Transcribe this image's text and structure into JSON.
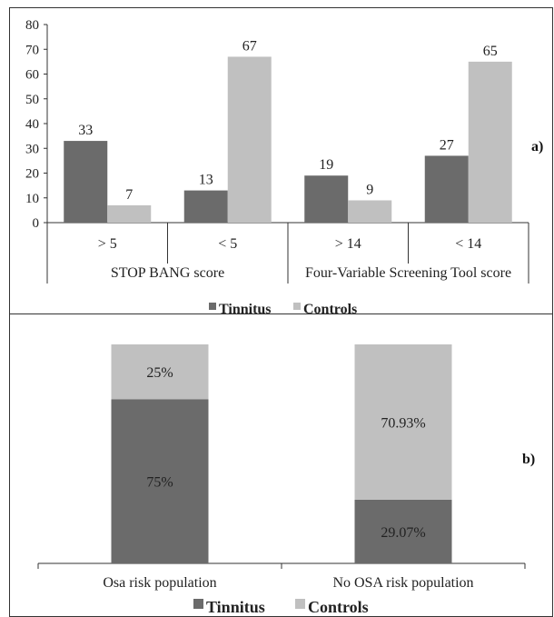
{
  "chart_data": [
    {
      "type": "bar",
      "panel_label": "a)",
      "group_labels": [
        "STOP BANG score",
        "Four-Variable Screening Tool score"
      ],
      "categories": [
        "> 5",
        "< 5",
        "> 14",
        "< 14"
      ],
      "series": [
        {
          "name": "Tinnitus",
          "color": "#6b6b6b",
          "values": [
            33,
            13,
            19,
            27
          ]
        },
        {
          "name": "Controls",
          "color": "#c0c0c0",
          "values": [
            7,
            67,
            9,
            65
          ]
        }
      ],
      "ylim": [
        0,
        80
      ],
      "yticks": [
        "0",
        "10",
        "20",
        "30",
        "40",
        "50",
        "60",
        "70",
        "80"
      ],
      "legend_position": "bottom-center",
      "grid": false
    },
    {
      "type": "bar",
      "stacked": true,
      "panel_label": "b)",
      "categories": [
        "Osa risk population",
        "No OSA risk population"
      ],
      "series": [
        {
          "name": "Tinnitus",
          "color": "#6b6b6b",
          "values": [
            75,
            29.07
          ],
          "labels": [
            "75%",
            "29.07%"
          ]
        },
        {
          "name": "Controls",
          "color": "#c0c0c0",
          "values": [
            25,
            70.93
          ],
          "labels": [
            "25%",
            "70.93%"
          ]
        }
      ],
      "ylim": [
        0,
        100
      ],
      "legend_position": "bottom-center",
      "grid": false
    }
  ]
}
